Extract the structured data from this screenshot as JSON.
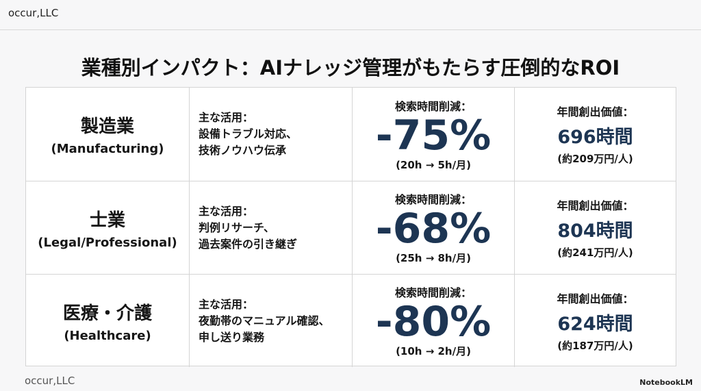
{
  "header": {
    "brand": "occur,LLC"
  },
  "title": "業種別インパクト：AIナレッジ管理がもたらす圧倒的なROI",
  "table": {
    "rows": [
      {
        "industry": "製造業",
        "industry_en": "(Manufacturing)",
        "use_label": "主な活用：",
        "use_lines": [
          "設備トラブル対応、",
          "技術ノウハウ伝承"
        ],
        "reduction_label": "検索時間削減：",
        "reduction": "-75%",
        "reduction_detail": "(20h → 5h/月)",
        "value_label": "年間創出価値：",
        "value": "696時間",
        "value_detail": "(約209万円/人)"
      },
      {
        "industry": "士業",
        "industry_en": "(Legal/Professional)",
        "use_label": "主な活用：",
        "use_lines": [
          "判例リサーチ、",
          "過去案件の引き継ぎ"
        ],
        "reduction_label": "検索時間削減：",
        "reduction": "-68%",
        "reduction_detail": "(25h → 8h/月)",
        "value_label": "年間創出価値：",
        "value": "804時間",
        "value_detail": "(約241万円/人)"
      },
      {
        "industry": "医療・介護",
        "industry_en": "(Healthcare)",
        "use_label": "主な活用：",
        "use_lines": [
          "夜勤帯のマニュアル確認、",
          "申し送り業務"
        ],
        "reduction_label": "検索時間削減：",
        "reduction": "-80%",
        "reduction_detail": "(10h → 2h/月)",
        "value_label": "年間創出価値：",
        "value": "624時間",
        "value_detail": "(約187万円/人)"
      }
    ]
  },
  "footer": {
    "brand": "occur,LLC",
    "watermark": "NotebookLM"
  }
}
